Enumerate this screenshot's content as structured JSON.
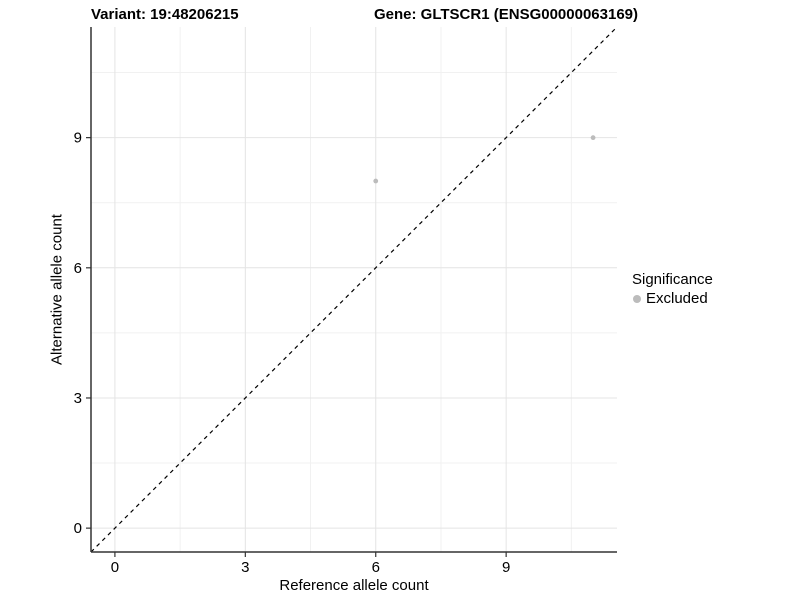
{
  "header": {
    "variant": "Variant: 19:48206215",
    "gene": "Gene: GLTSCR1 (ENSG00000063169)"
  },
  "legend": {
    "title": "Significance",
    "items": [
      {
        "label": "Excluded",
        "color": "#bcbcbc"
      }
    ]
  },
  "colors": {
    "background": "#ffffff",
    "grid_major": "#e4e4e4",
    "grid_minor": "#f1f1f1",
    "axis_line": "#333333",
    "tick_mark": "#333333",
    "text": "#000000",
    "point": "#bcbcbc",
    "identity_line": "#000000"
  },
  "chart_data": {
    "type": "scatter",
    "title": "Variant: 19:48206215   Gene: GLTSCR1 (ENSG00000063169)",
    "xlabel": "Reference allele count",
    "ylabel": "Alternative allele count",
    "xlim": [
      -0.55,
      11.55
    ],
    "ylim": [
      -0.55,
      11.55
    ],
    "x_ticks": [
      0,
      3,
      6,
      9
    ],
    "y_ticks": [
      0,
      3,
      6,
      9
    ],
    "x_minor_ticks": [
      1.5,
      4.5,
      7.5,
      10.5
    ],
    "y_minor_ticks": [
      1.5,
      4.5,
      7.5,
      10.5
    ],
    "grid": true,
    "legend_position": "right",
    "series": [
      {
        "name": "Excluded",
        "color": "#bcbcbc",
        "points": [
          {
            "x": 6,
            "y": 8
          },
          {
            "x": 11,
            "y": 9
          }
        ]
      }
    ],
    "reference_line": {
      "kind": "identity",
      "equation": "y = x",
      "dashed": true,
      "color": "#000000"
    }
  }
}
